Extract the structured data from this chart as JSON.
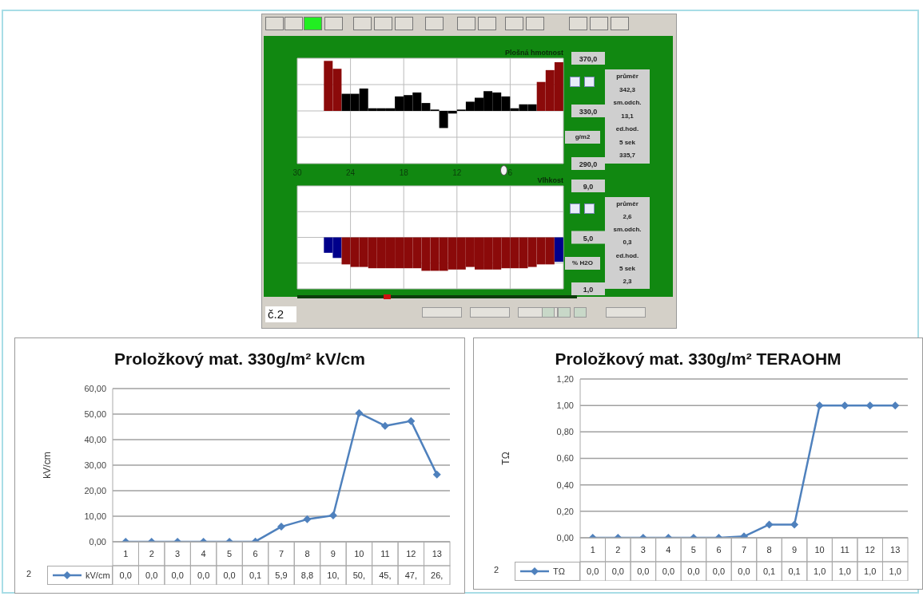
{
  "chart_data": [
    {
      "type": "bar",
      "title": "Plošná hmotnost",
      "ylabel": "g/m2",
      "x": [
        26.5,
        25.5,
        24.5,
        23.5,
        22.5,
        21.5,
        20.5,
        19.5,
        18.5,
        17.5,
        16.5,
        15.5,
        14.5,
        13.5,
        12.5,
        11.5,
        10.5,
        9.5,
        8.5,
        7.5,
        6.5,
        5.5,
        4.5,
        3.5,
        2.5,
        1.5,
        0.5
      ],
      "base": [
        330,
        330,
        330,
        330,
        330,
        330,
        330,
        330,
        330,
        330,
        330,
        330,
        330,
        330,
        330,
        330,
        330,
        330,
        330,
        330,
        330,
        330,
        330,
        330,
        330,
        330,
        330
      ],
      "values": [
        38,
        32,
        13,
        13,
        17,
        2,
        2,
        2,
        11,
        12,
        14,
        6,
        1,
        -13,
        -2,
        1,
        7,
        10,
        15,
        14,
        11,
        2,
        5,
        5,
        22,
        31,
        37
      ],
      "colors": [
        "#8b0a0a",
        "#8b0a0a",
        "#000000",
        "#000000",
        "#000000",
        "#000000",
        "#000000",
        "#000000",
        "#000000",
        "#000000",
        "#000000",
        "#000000",
        "#000000",
        "#000000",
        "#000000",
        "#000000",
        "#000000",
        "#000000",
        "#000000",
        "#000000",
        "#000000",
        "#000000",
        "#000000",
        "#000000",
        "#8b0a0a",
        "#8b0a0a",
        "#8b0a0a"
      ],
      "xlim": [
        30,
        0
      ],
      "xticks": [
        30,
        24,
        18,
        12,
        6
      ],
      "ylim": [
        290,
        370
      ],
      "yticks": [
        {
          "value": 370,
          "label": "370,0"
        },
        {
          "value": 350,
          "label": null
        },
        {
          "value": 330,
          "label": "330,0"
        },
        {
          "value": 310,
          "label": null
        },
        {
          "value": 290,
          "label": "290,0"
        }
      ],
      "grid": true,
      "annotations": [
        "průměr",
        "342,3",
        "sm.odch.",
        "13,1",
        "ed.hod.",
        "5 sek",
        "335,7"
      ]
    },
    {
      "type": "bar",
      "title": "Vlhkost",
      "ylabel": "% H2O",
      "x": [
        26.5,
        25.5,
        24.5,
        23.5,
        22.5,
        21.5,
        20.5,
        19.5,
        18.5,
        17.5,
        16.5,
        15.5,
        14.5,
        13.5,
        12.5,
        11.5,
        10.5,
        9.5,
        8.5,
        7.5,
        6.5,
        5.5,
        4.5,
        3.5,
        2.5,
        1.5,
        0.5
      ],
      "base": [
        5,
        5,
        5,
        5,
        5,
        5,
        5,
        5,
        5,
        5,
        5,
        5,
        5,
        5,
        5,
        5,
        5,
        5,
        5,
        5,
        5,
        5,
        5,
        5,
        5,
        5,
        5
      ],
      "values": [
        -1.2,
        -1.6,
        -2.1,
        -2.3,
        -2.3,
        -2.4,
        -2.4,
        -2.4,
        -2.4,
        -2.4,
        -2.4,
        -2.6,
        -2.6,
        -2.6,
        -2.5,
        -2.5,
        -2.3,
        -2.5,
        -2.5,
        -2.5,
        -2.4,
        -2.4,
        -2.4,
        -2.3,
        -2.1,
        -2.1,
        -1.9
      ],
      "colors": [
        "#00008b",
        "#00008b",
        "#8b0a0a",
        "#8b0a0a",
        "#8b0a0a",
        "#8b0a0a",
        "#8b0a0a",
        "#8b0a0a",
        "#8b0a0a",
        "#8b0a0a",
        "#8b0a0a",
        "#8b0a0a",
        "#8b0a0a",
        "#8b0a0a",
        "#8b0a0a",
        "#8b0a0a",
        "#8b0a0a",
        "#8b0a0a",
        "#8b0a0a",
        "#8b0a0a",
        "#8b0a0a",
        "#8b0a0a",
        "#8b0a0a",
        "#8b0a0a",
        "#8b0a0a",
        "#8b0a0a",
        "#00008b"
      ],
      "xlim": [
        30,
        0
      ],
      "xticks": [
        30,
        24,
        18,
        12,
        6
      ],
      "ylim": [
        1,
        9
      ],
      "yticks": [
        {
          "value": 9,
          "label": "9,0"
        },
        {
          "value": 7,
          "label": null
        },
        {
          "value": 5,
          "label": "5,0"
        },
        {
          "value": 3,
          "label": null
        },
        {
          "value": 1,
          "label": "1,0"
        }
      ],
      "grid": true,
      "tick_labels": "y",
      "annotations": [
        "průměr",
        "2,6",
        "sm.odch.",
        "0,3",
        "ed.hod.",
        "5 sek",
        "2,3",
        "č.2"
      ]
    },
    {
      "type": "line",
      "title": "Proložkový mat. 330g/m²  kV/cm",
      "ylabel": "kV/cm",
      "categories": [
        "1",
        "2",
        "3",
        "4",
        "5",
        "6",
        "7",
        "8",
        "9",
        "10",
        "11",
        "12",
        "13"
      ],
      "series": [
        {
          "name": "kV/cm",
          "color": "#4f81bd",
          "values": [
            0,
            0,
            0,
            0,
            0,
            0.1,
            5.9,
            8.8,
            10.3,
            50.4,
            45.4,
            47.3,
            26.3
          ],
          "value_labels": [
            "0,0",
            "0,0",
            "0,0",
            "0,0",
            "0,0",
            "0,1",
            "5,9",
            "8,8",
            "10,",
            "50,",
            "45,",
            "47,",
            "26,"
          ]
        }
      ],
      "ylim": [
        0,
        60
      ],
      "yticks": [
        {
          "value": 0,
          "label": "0,00"
        },
        {
          "value": 10,
          "label": "10,00"
        },
        {
          "value": 20,
          "label": "20,00"
        },
        {
          "value": 30,
          "label": "30,00"
        },
        {
          "value": 40,
          "label": "40,00"
        },
        {
          "value": 50,
          "label": "50,00"
        },
        {
          "value": 60,
          "label": "60,00"
        }
      ],
      "grid": "y",
      "legend": "bottom",
      "marker": "diamond",
      "line_style": "solid",
      "annotations": [
        "2"
      ]
    },
    {
      "type": "line",
      "title": "Proložkový mat. 330g/m² TERAOHM",
      "ylabel": "TΩ",
      "categories": [
        "1",
        "2",
        "3",
        "4",
        "5",
        "6",
        "7",
        "8",
        "9",
        "10",
        "11",
        "12",
        "13"
      ],
      "series": [
        {
          "name": "TΩ",
          "color": "#4f81bd",
          "values": [
            0,
            0,
            0,
            0,
            0,
            0,
            0.01,
            0.1,
            0.1,
            1,
            1,
            1,
            1
          ],
          "value_labels": [
            "0,0",
            "0,0",
            "0,0",
            "0,0",
            "0,0",
            "0,0",
            "0,0",
            "0,1",
            "0,1",
            "1,0",
            "1,0",
            "1,0",
            "1,0"
          ]
        }
      ],
      "ylim": [
        0,
        1.2
      ],
      "yticks": [
        {
          "value": 0,
          "label": "0,00"
        },
        {
          "value": 0.2,
          "label": "0,20"
        },
        {
          "value": 0.4,
          "label": "0,40"
        },
        {
          "value": 0.6,
          "label": "0,60"
        },
        {
          "value": 0.8,
          "label": "0,80"
        },
        {
          "value": 1,
          "label": "1,00"
        },
        {
          "value": 1.2,
          "label": "1,20"
        }
      ],
      "grid": "y",
      "legend": "bottom",
      "marker": "diamond",
      "line_style": "solid",
      "annotations": [
        "2"
      ]
    }
  ]
}
